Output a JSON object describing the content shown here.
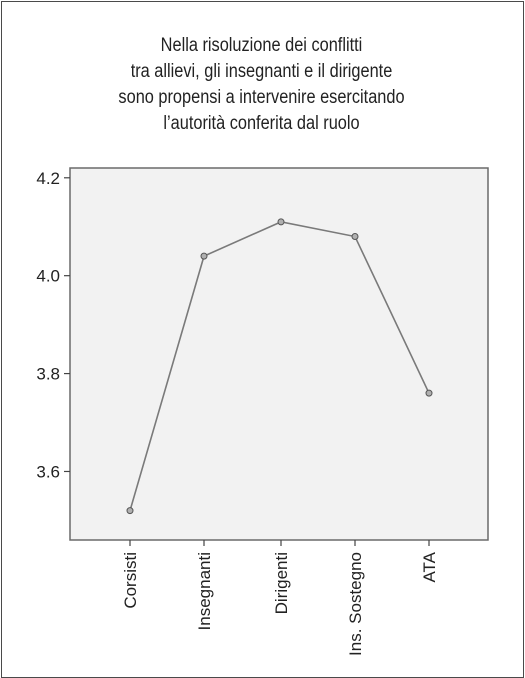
{
  "chart_data": {
    "type": "line",
    "title_lines": [
      "Nella risoluzione dei conflitti",
      "tra allievi, gli insegnanti e il dirigente",
      "sono propensi a intervenire esercitando",
      "l’autorità conferita dal ruolo"
    ],
    "categories": [
      "Corsisti",
      "Insegnanti",
      "Dirigenti",
      "Ins. Sostegno",
      "ATA"
    ],
    "values": [
      3.52,
      4.04,
      4.11,
      4.08,
      3.76
    ],
    "yticks": [
      3.6,
      3.8,
      4.0,
      4.2
    ],
    "ytick_labels": [
      "3.6",
      "3.8",
      "4.0",
      "4.2"
    ],
    "ylim": [
      3.46,
      4.22
    ],
    "xlabel": "",
    "ylabel": "",
    "grid": false,
    "colors": {
      "line": "#7a7a7a",
      "marker_fill": "#b0b0b0",
      "marker_stroke": "#555555",
      "plot_background": "#f2f2f2",
      "plot_border": "#6a6a6a"
    }
  }
}
